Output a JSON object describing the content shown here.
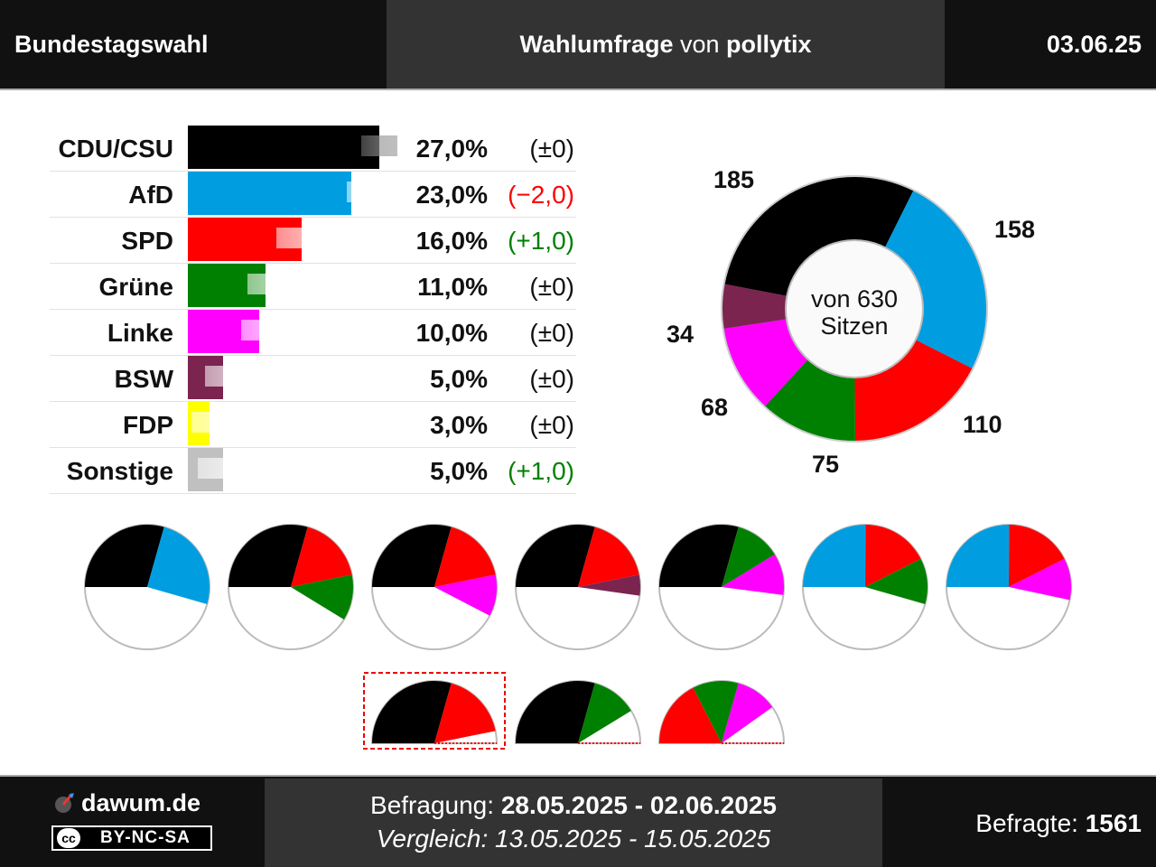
{
  "header": {
    "left": "Bundestagswahl",
    "center_bold": "Wahlumfrage",
    "center_mid": " von ",
    "center_source": "pollytix",
    "date": "03.06.25"
  },
  "chart_data": [
    {
      "type": "bar",
      "categories": [
        "CDU/CSU",
        "AfD",
        "SPD",
        "Grüne",
        "Linke",
        "BSW",
        "FDP",
        "Sonstige"
      ],
      "values": [
        27.0,
        23.0,
        16.0,
        11.0,
        10.0,
        5.0,
        3.0,
        5.0
      ],
      "previous_values": [
        27.0,
        25.0,
        15.0,
        11.0,
        10.0,
        5.0,
        3.0,
        4.0
      ],
      "value_labels": [
        "27,0%",
        "23,0%",
        "16,0%",
        "11,0%",
        "10,0%",
        "5,0%",
        "3,0%",
        "5,0%"
      ],
      "change_labels": [
        "(±0)",
        "(−2,0)",
        "(+1,0)",
        "(±0)",
        "(±0)",
        "(±0)",
        "(±0)",
        "(+1,0)"
      ],
      "change_colors": [
        "#111111",
        "#ff0000",
        "#008000",
        "#111111",
        "#111111",
        "#111111",
        "#111111",
        "#008000"
      ],
      "colors": [
        "#000000",
        "#009ee0",
        "#ff0000",
        "#008000",
        "#ff00ff",
        "#7b2450",
        "#ffff00",
        "#c0c0c0"
      ]
    },
    {
      "type": "pie",
      "title_line1": "von 630",
      "title_line2": "Sitzen",
      "categories": [
        "CDU/CSU",
        "AfD",
        "SPD",
        "Grüne",
        "Linke",
        "BSW"
      ],
      "values": [
        185,
        158,
        110,
        75,
        68,
        34
      ],
      "colors": [
        "#000000",
        "#009ee0",
        "#ff0000",
        "#008000",
        "#ff00ff",
        "#7b2450"
      ]
    },
    {
      "type": "pie",
      "name": "coalitions",
      "coalitions": [
        {
          "parties": [
            "CDU/CSU",
            "AfD"
          ],
          "seats": [
            185,
            158
          ]
        },
        {
          "parties": [
            "CDU/CSU",
            "SPD",
            "Grüne"
          ],
          "seats": [
            185,
            110,
            75
          ]
        },
        {
          "parties": [
            "CDU/CSU",
            "SPD",
            "Linke"
          ],
          "seats": [
            185,
            110,
            68
          ]
        },
        {
          "parties": [
            "CDU/CSU",
            "SPD",
            "BSW"
          ],
          "seats": [
            185,
            110,
            34
          ]
        },
        {
          "parties": [
            "CDU/CSU",
            "Grüne",
            "Linke"
          ],
          "seats": [
            185,
            75,
            68
          ]
        },
        {
          "parties": [
            "AfD",
            "SPD",
            "Grüne"
          ],
          "seats": [
            158,
            110,
            75
          ]
        },
        {
          "parties": [
            "AfD",
            "SPD",
            "Linke"
          ],
          "seats": [
            158,
            110,
            68
          ]
        }
      ],
      "majority_coalitions": [
        {
          "parties": [
            "CDU/CSU",
            "SPD"
          ],
          "seats": [
            185,
            110
          ],
          "highlighted": true
        },
        {
          "parties": [
            "CDU/CSU",
            "Grüne"
          ],
          "seats": [
            185,
            75
          ],
          "highlighted": false
        },
        {
          "parties": [
            "SPD",
            "Grüne",
            "Linke"
          ],
          "seats": [
            110,
            75,
            68
          ],
          "highlighted": false
        }
      ],
      "total_seats": 630
    }
  ],
  "footer": {
    "brand": "dawum.de",
    "license": "BY-NC-SA",
    "survey_label": "Befragung: ",
    "survey_dates": "28.05.2025 - 02.06.2025",
    "compare_text": "Vergleich: 13.05.2025 - 15.05.2025",
    "respondents_label": "Befragte: ",
    "respondents": "1561"
  }
}
